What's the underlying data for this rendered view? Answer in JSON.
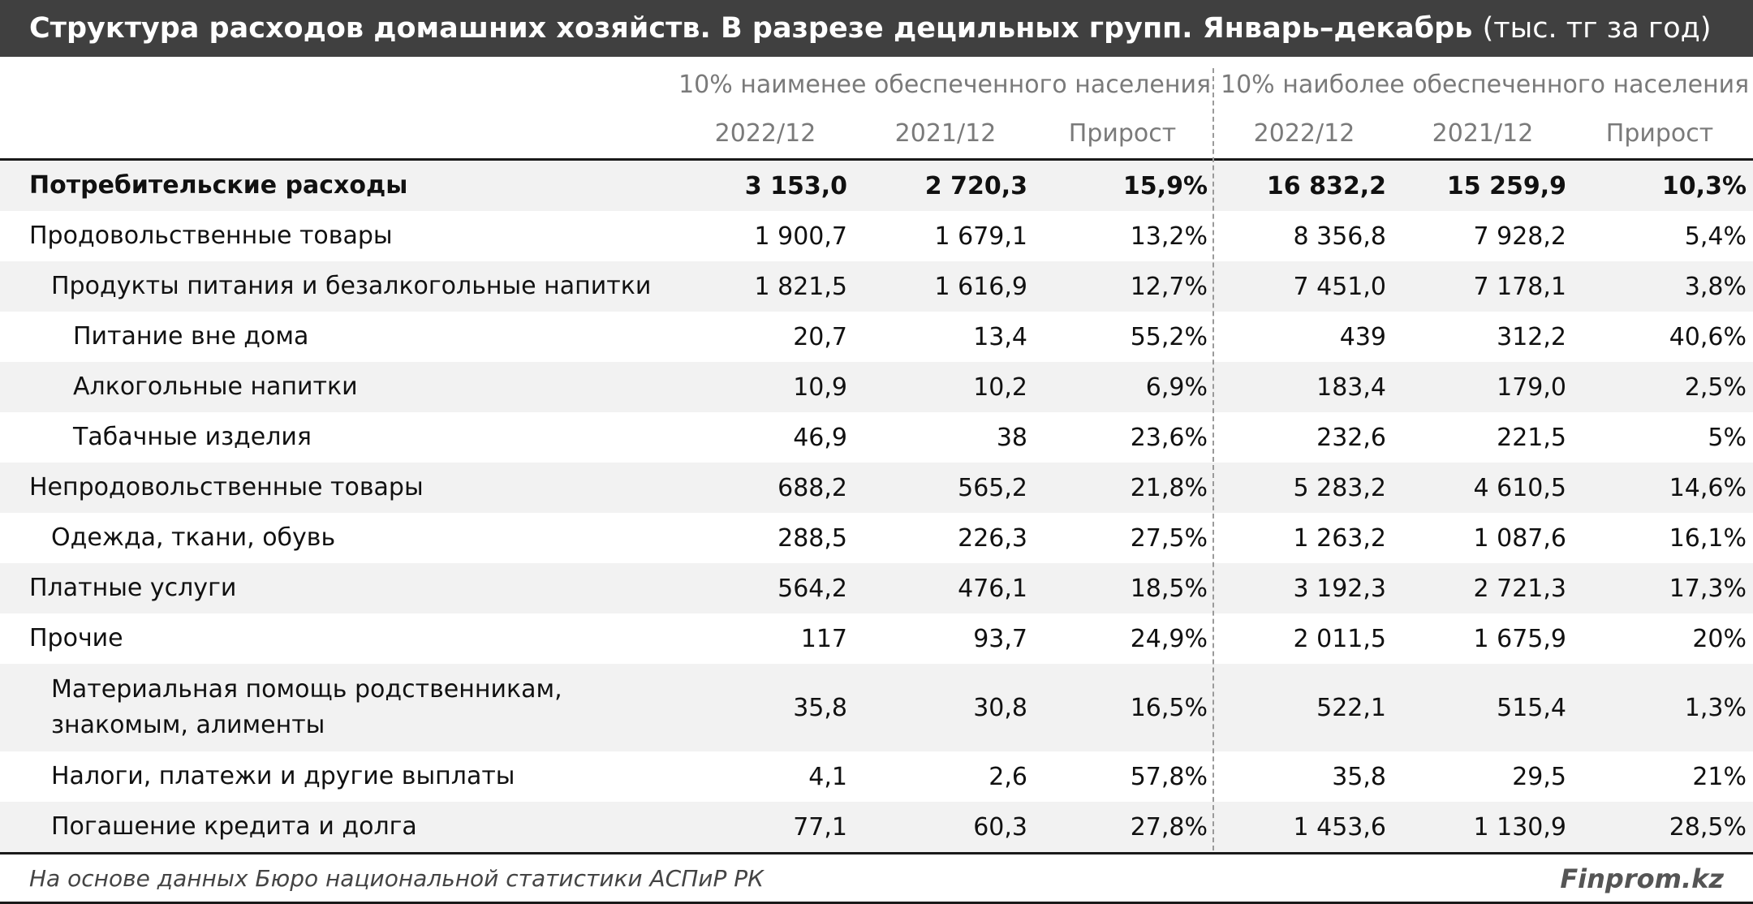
{
  "title": {
    "main": "Структура расходов домашних хозяйств. В разрезе децильных групп. Январь–декабрь",
    "unit": "(тыс. тг за год)"
  },
  "groups": {
    "low": "10% наименее обеспеченного населения",
    "high": "10% наиболее обеспеченного населения"
  },
  "columns": [
    "2022/12",
    "2021/12",
    "Прирост",
    "2022/12",
    "2021/12",
    "Прирост"
  ],
  "rows": [
    {
      "label": "Потребительские расходы",
      "level": 0,
      "bold": true,
      "values": [
        "3 153,0",
        "2 720,3",
        "15,9%",
        "16 832,2",
        "15 259,9",
        "10,3%"
      ]
    },
    {
      "label": "Продовольственные товары",
      "level": 0,
      "bold": false,
      "values": [
        "1 900,7",
        "1 679,1",
        "13,2%",
        "8 356,8",
        "7 928,2",
        "5,4%"
      ]
    },
    {
      "label": "Продукты питания и безалкогольные напитки",
      "level": 1,
      "bold": false,
      "values": [
        "1 821,5",
        "1 616,9",
        "12,7%",
        "7 451,0",
        "7 178,1",
        "3,8%"
      ]
    },
    {
      "label": "Питание вне дома",
      "level": 2,
      "bold": false,
      "values": [
        "20,7",
        "13,4",
        "55,2%",
        "439",
        "312,2",
        "40,6%"
      ]
    },
    {
      "label": "Алкогольные напитки",
      "level": 2,
      "bold": false,
      "values": [
        "10,9",
        "10,2",
        "6,9%",
        "183,4",
        "179,0",
        "2,5%"
      ]
    },
    {
      "label": "Табачные изделия",
      "level": 2,
      "bold": false,
      "values": [
        "46,9",
        "38",
        "23,6%",
        "232,6",
        "221,5",
        "5%"
      ]
    },
    {
      "label": "Непродовольственные товары",
      "level": 0,
      "bold": false,
      "values": [
        "688,2",
        "565,2",
        "21,8%",
        "5 283,2",
        "4 610,5",
        "14,6%"
      ]
    },
    {
      "label": "Одежда, ткани, обувь",
      "level": 1,
      "bold": false,
      "values": [
        "288,5",
        "226,3",
        "27,5%",
        "1 263,2",
        "1 087,6",
        "16,1%"
      ]
    },
    {
      "label": "Платные услуги",
      "level": 0,
      "bold": false,
      "values": [
        "564,2",
        "476,1",
        "18,5%",
        "3 192,3",
        "2 721,3",
        "17,3%"
      ]
    },
    {
      "label": "Прочие",
      "level": 0,
      "bold": false,
      "values": [
        "117",
        "93,7",
        "24,9%",
        "2 011,5",
        "1 675,9",
        "20%"
      ]
    },
    {
      "label": "Материальная помощь родственникам, знакомым, алименты",
      "level": 1,
      "bold": false,
      "values": [
        "35,8",
        "30,8",
        "16,5%",
        "522,1",
        "515,4",
        "1,3%"
      ]
    },
    {
      "label": "Налоги, платежи и другие выплаты",
      "level": 1,
      "bold": false,
      "values": [
        "4,1",
        "2,6",
        "57,8%",
        "35,8",
        "29,5",
        "21%"
      ]
    },
    {
      "label": "Погашение кредита и долга",
      "level": 1,
      "bold": false,
      "values": [
        "77,1",
        "60,3",
        "27,8%",
        "1 453,6",
        "1 130,9",
        "28,5%"
      ]
    }
  ],
  "footer": {
    "source": "На основе данных Бюро национальной статистики АСПиР РК",
    "brand": "Finprom.kz"
  },
  "colors": {
    "title_bg": "#404040",
    "row_shade": "#f2f2f2",
    "header_text": "#7a7a7a"
  }
}
